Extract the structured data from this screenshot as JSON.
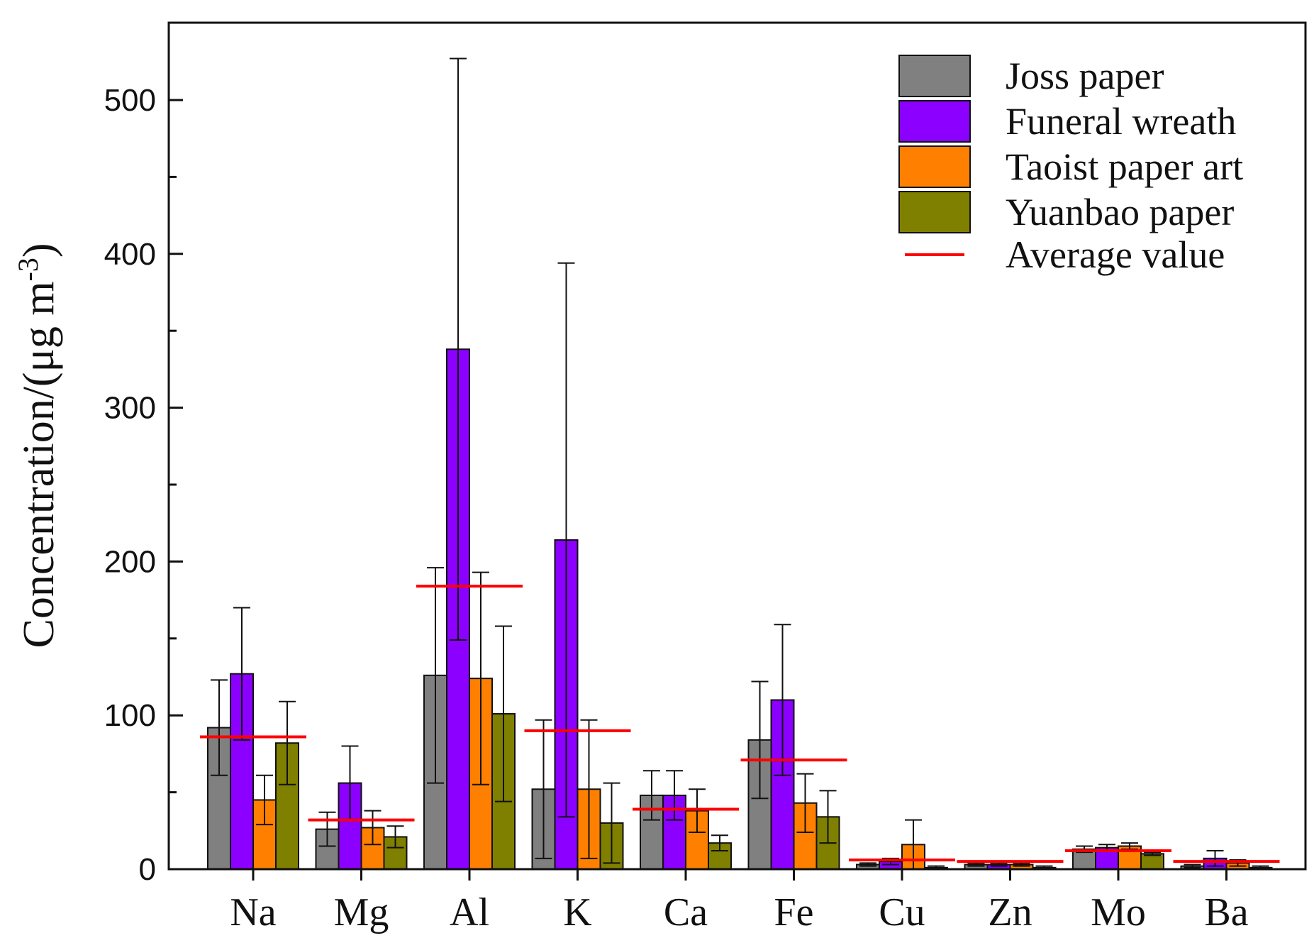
{
  "chart_data": {
    "type": "bar",
    "title": "",
    "xlabel": "",
    "ylabel": "Concentration/(μg m",
    "ylabel_superscript": "-3",
    "ylabel_close": ")",
    "ylim": [
      0,
      550
    ],
    "yticks": [
      "0",
      "100",
      "200",
      "300",
      "400",
      "500"
    ],
    "categories": [
      "Na",
      "Mg",
      "Al",
      "K",
      "Ca",
      "Fe",
      "Cu",
      "Zn",
      "Mo",
      "Ba"
    ],
    "series": [
      {
        "name": "Joss paper",
        "color": "#808080",
        "values": [
          92,
          26,
          126,
          52,
          48,
          84,
          3,
          3,
          13,
          2
        ],
        "errors": [
          31,
          11,
          70,
          45,
          16,
          38,
          1,
          1,
          2,
          1
        ]
      },
      {
        "name": "Funeral wreath",
        "color": "#8B00FF",
        "values": [
          127,
          56,
          338,
          214,
          48,
          110,
          5,
          3,
          14,
          7
        ],
        "errors": [
          43,
          24,
          189,
          180,
          16,
          49,
          2,
          1,
          2,
          5
        ]
      },
      {
        "name": "Taoist paper art",
        "color": "#FF8000",
        "values": [
          45,
          27,
          124,
          52,
          38,
          43,
          16,
          3,
          15,
          4
        ],
        "errors": [
          16,
          11,
          69,
          45,
          14,
          19,
          16,
          1,
          2,
          2
        ]
      },
      {
        "name": "Yuanbao paper",
        "color": "#808000",
        "values": [
          82,
          21,
          101,
          30,
          17,
          34,
          1,
          1,
          10,
          1
        ],
        "errors": [
          27,
          7,
          57,
          26,
          5,
          17,
          1,
          1,
          1,
          1
        ]
      }
    ],
    "average": {
      "name": "Average value",
      "color": "#FF0000",
      "values": [
        86,
        32,
        184,
        90,
        39,
        71,
        6,
        5,
        12,
        5
      ]
    },
    "legend_position": "top-right",
    "grid": false
  }
}
